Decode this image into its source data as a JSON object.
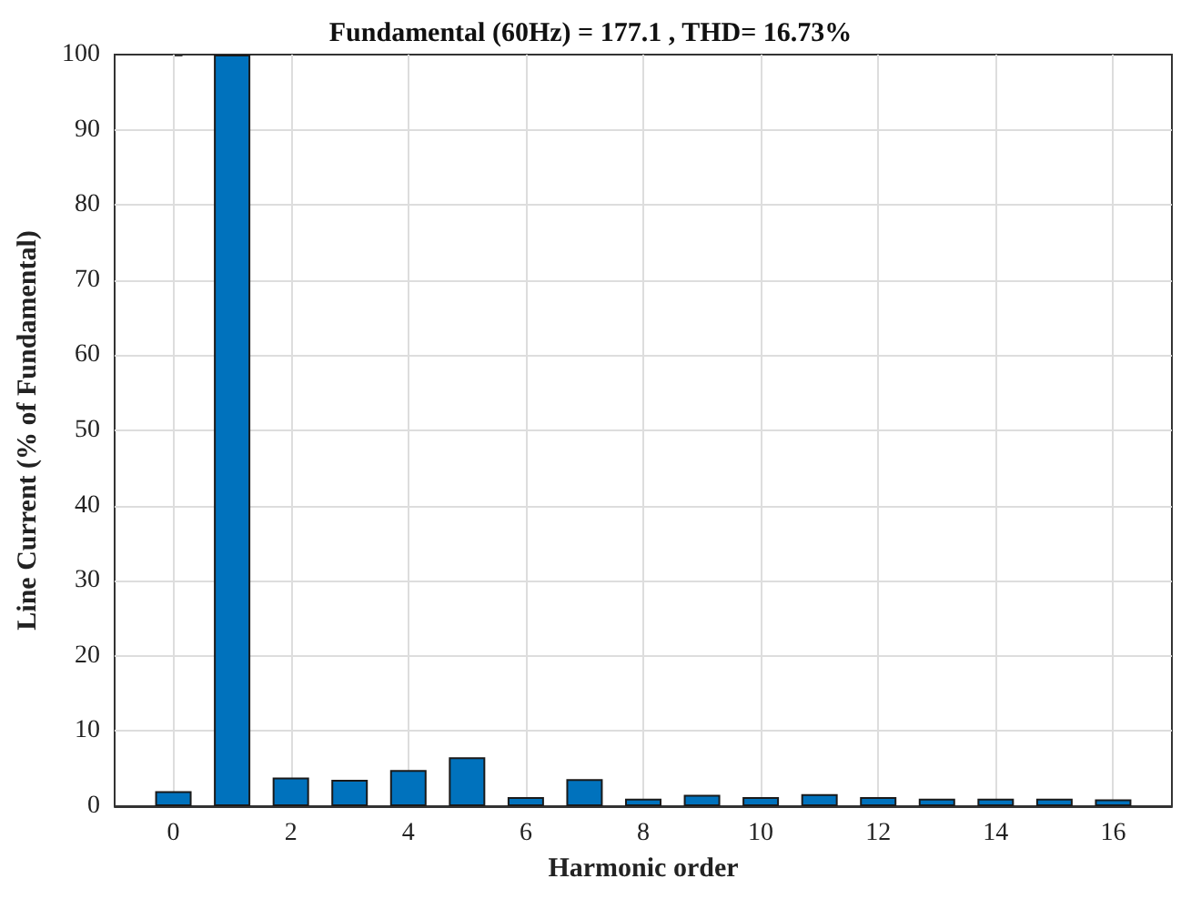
{
  "chart_data": {
    "type": "bar",
    "title": "Fundamental (60Hz) = 177.1 , THD= 16.73%",
    "xlabel": "Harmonic order",
    "ylabel": "Line Current (% of Fundamental)",
    "x": [
      0,
      1,
      2,
      3,
      4,
      5,
      6,
      7,
      8,
      9,
      10,
      11,
      12,
      13,
      14,
      15,
      16
    ],
    "values": [
      2.0,
      100,
      3.8,
      3.5,
      4.8,
      6.5,
      1.2,
      3.6,
      1.0,
      1.5,
      1.2,
      1.6,
      1.2,
      1.0,
      1.0,
      1.0,
      0.9
    ],
    "color": "#0072bd",
    "xlim": [
      -1,
      17
    ],
    "xticks": [
      0,
      2,
      4,
      6,
      8,
      10,
      12,
      14,
      16
    ],
    "ylim": [
      0,
      100
    ],
    "yticks": [
      0,
      10,
      20,
      30,
      40,
      50,
      60,
      70,
      80,
      90,
      100
    ],
    "grid": true
  }
}
